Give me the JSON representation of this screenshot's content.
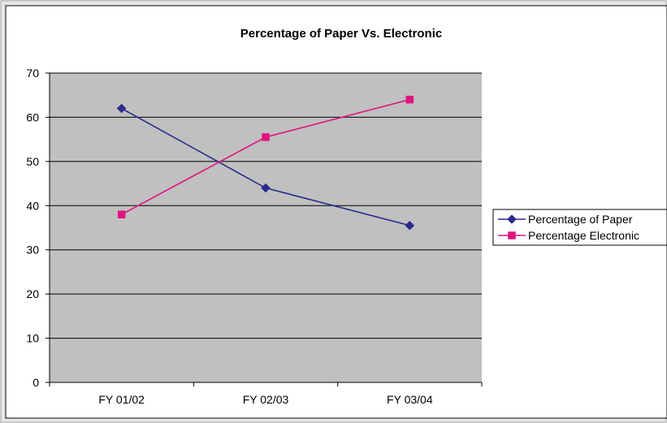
{
  "chart_data": {
    "type": "line",
    "title": "Percentage of Paper Vs. Electronic",
    "xlabel": "",
    "ylabel": "",
    "categories": [
      "FY 01/02",
      "FY 02/03",
      "FY 03/04"
    ],
    "ylim": [
      0,
      70
    ],
    "ytick_step": 10,
    "grid": true,
    "legend_position": "right",
    "colors": {
      "plot_background": "#c0c0c0",
      "frame_border": "#a9a9a9",
      "gridline": "#000000"
    },
    "series": [
      {
        "name": "Percentage of Paper",
        "values": [
          62,
          44,
          35.5
        ],
        "color": "#2a2a8c",
        "marker": "diamond"
      },
      {
        "name": "Percentage Electronic",
        "values": [
          38,
          55.5,
          64
        ],
        "color": "#e0147f",
        "marker": "square"
      }
    ]
  }
}
